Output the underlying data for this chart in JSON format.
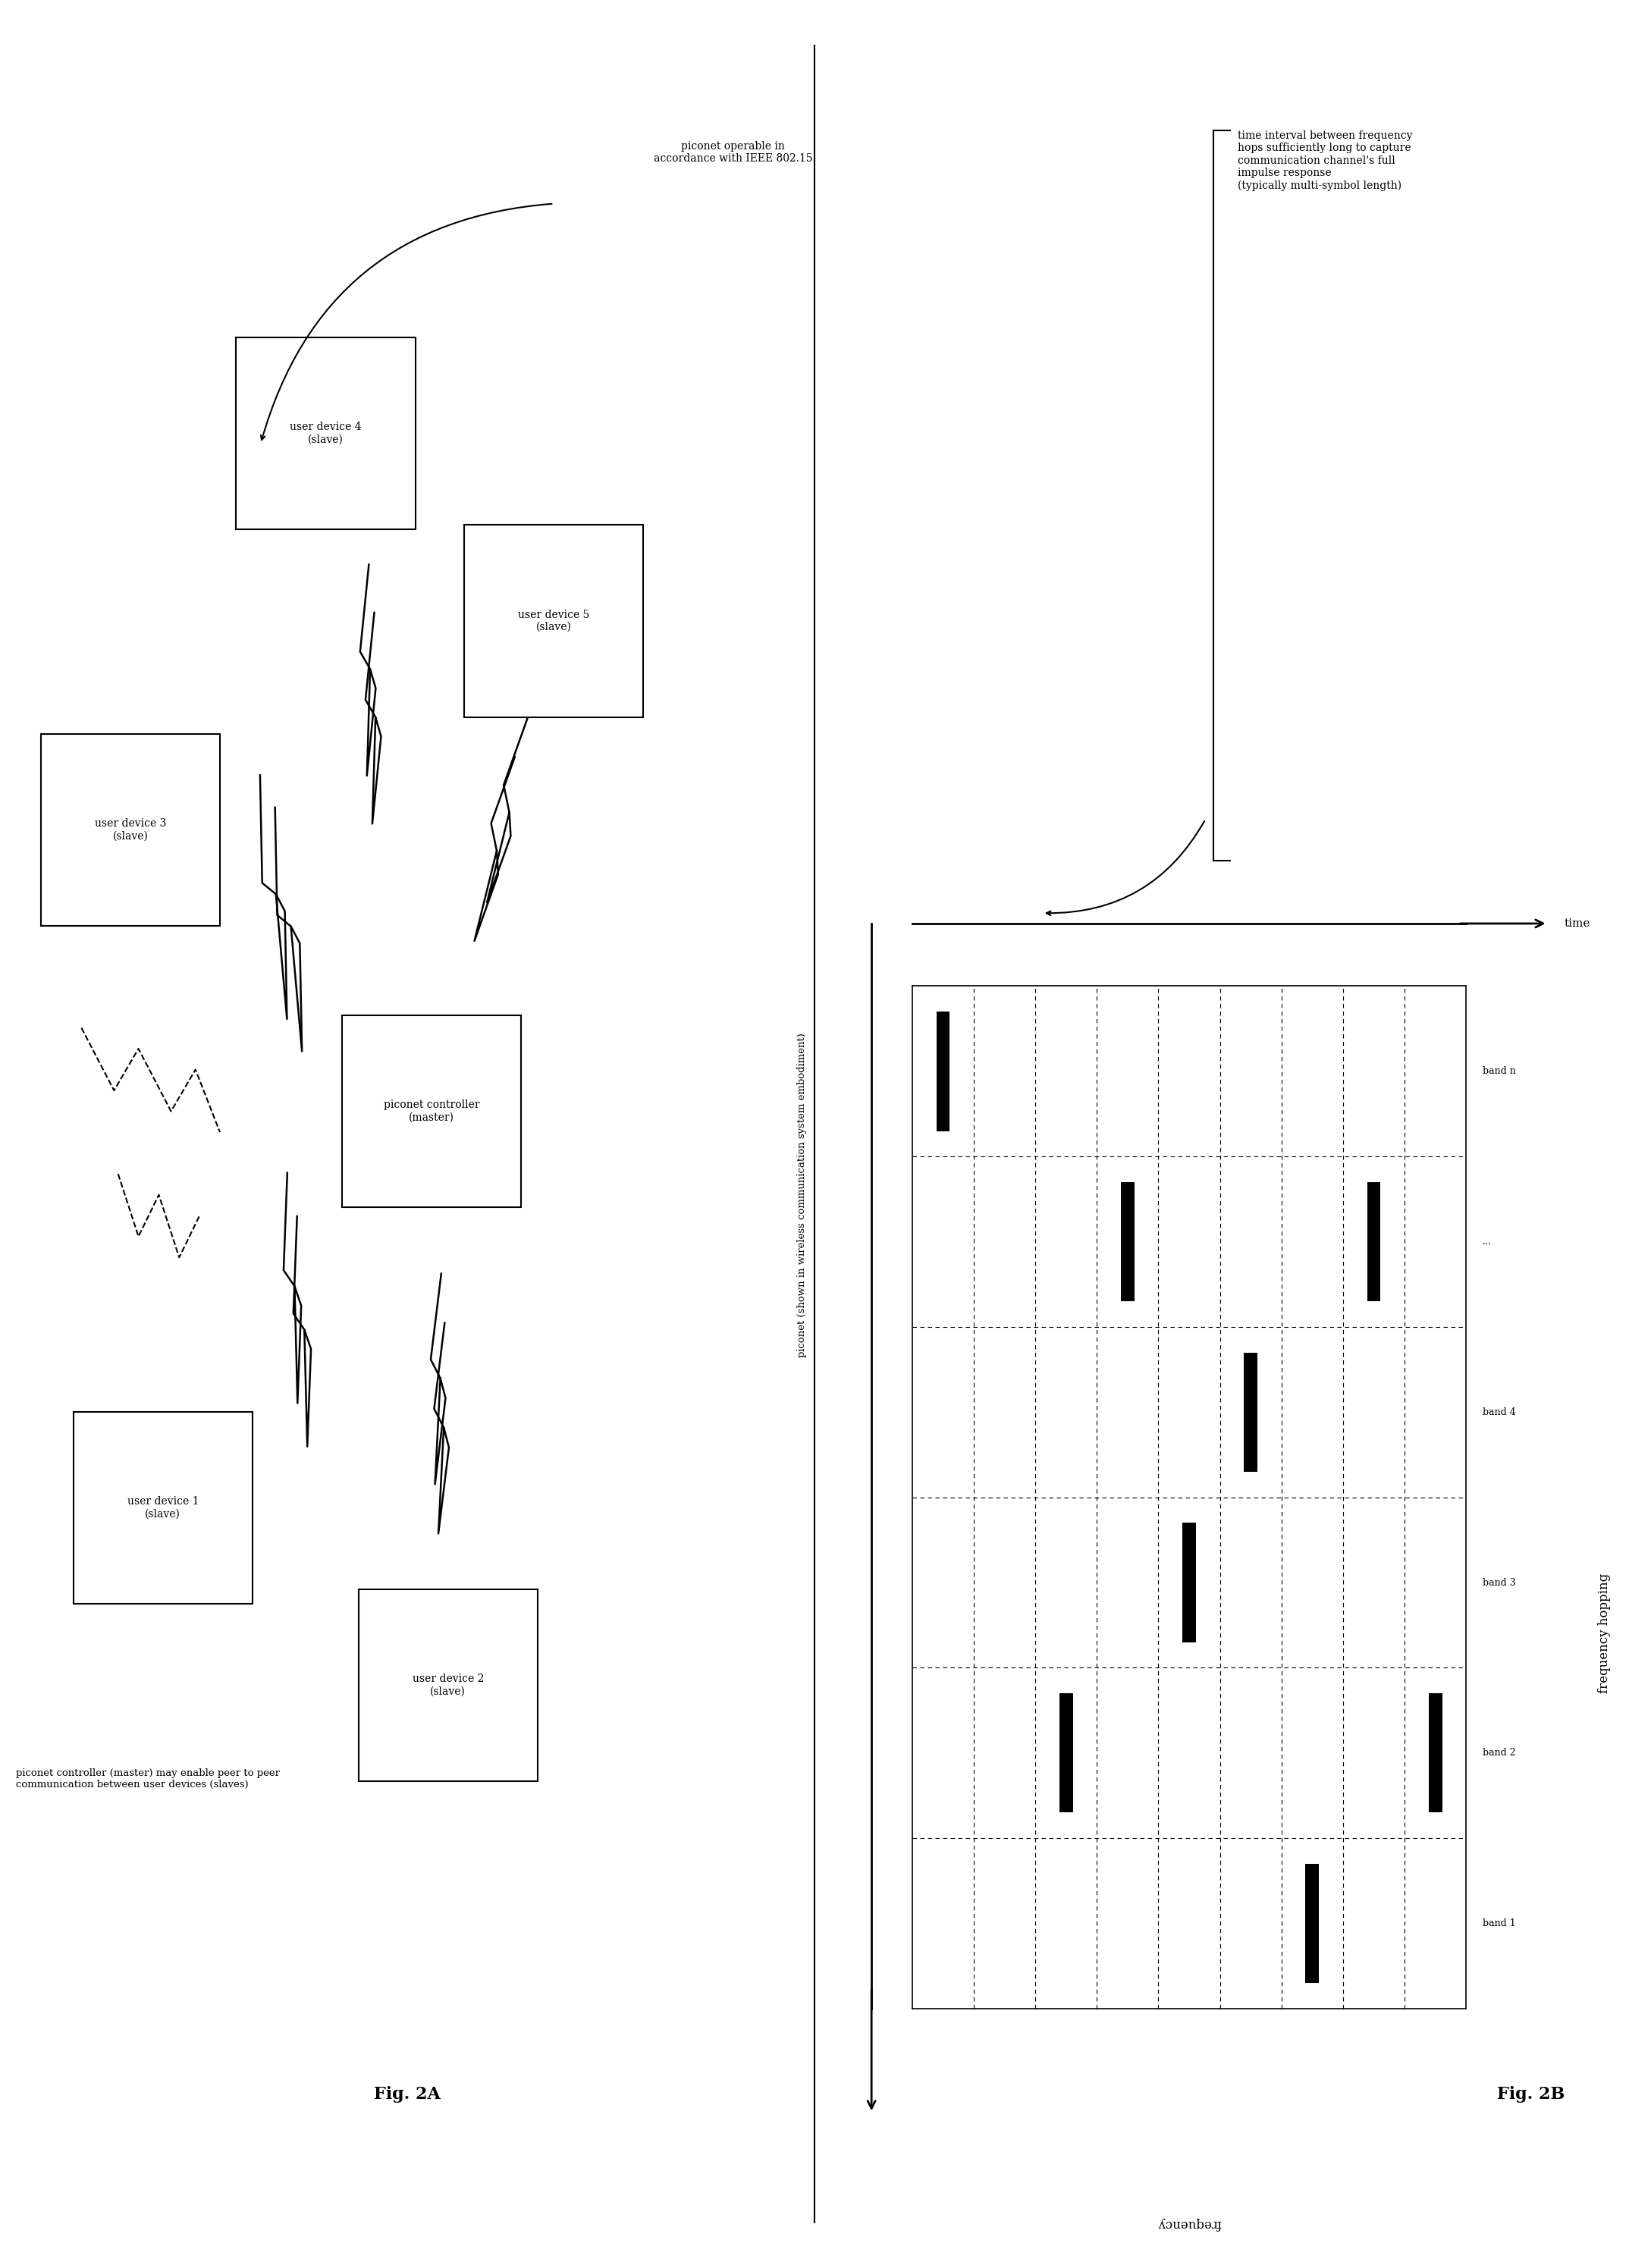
{
  "bg_color": "#ffffff",
  "text_color": "#000000",
  "fig2a": {
    "title": "Fig. 2A",
    "annotation1": "piconet operable in\naccordance with IEEE 802.15",
    "annotation2": "piconet controller (master) may enable peer to peer\ncommunication between user devices (slaves)",
    "annotation3": "piconet (shown in wireless communication system embodiment)"
  },
  "fig2b": {
    "title": "Fig. 2B",
    "freq_label": "frequency",
    "time_label": "time",
    "freq_hopping_label": "frequency hopping",
    "annotation": "time interval between frequency\nhops sufficiently long to capture\ncommunication channel's full\nimpulse response\n(typically multi-symbol length)",
    "n_cols": 9,
    "n_rows": 6,
    "bars": [
      {
        "col": 0,
        "row": 5
      },
      {
        "col": 2,
        "row": 1
      },
      {
        "col": 3,
        "row": 4
      },
      {
        "col": 4,
        "row": 2
      },
      {
        "col": 5,
        "row": 3
      },
      {
        "col": 6,
        "row": 0
      },
      {
        "col": 7,
        "row": 4
      },
      {
        "col": 8,
        "row": 1
      }
    ],
    "row_labels": [
      "band 1",
      "band 2",
      "band 3",
      "band 4",
      "...",
      "band n"
    ]
  }
}
